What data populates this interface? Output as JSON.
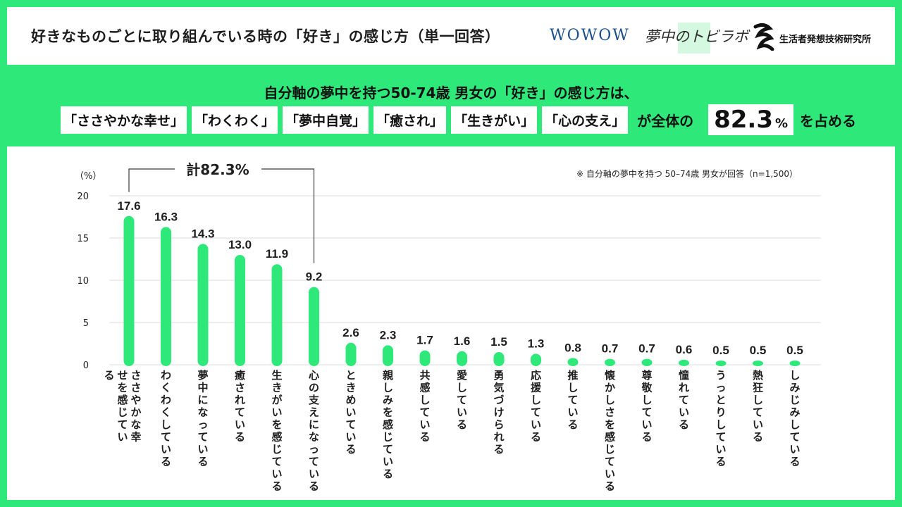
{
  "header": {
    "title": "好きなものごとに取り組んでいる時の「好き」の感じ方（単一回答）",
    "logos": {
      "wowow": "WOWOW",
      "muchu": "夢中のトビラボ",
      "seikatsu": "生活者発想技術研究所"
    }
  },
  "headline": {
    "line1": "自分軸の夢中を持つ50-74歳 男女の「好き」の感じ方は、",
    "tags": [
      "「ささやかな幸せ」",
      "「わくわく」",
      "「夢中自覚」",
      "「癒され」",
      "「生きがい」",
      "「心の支え」"
    ],
    "middle": "が全体の",
    "value": "82.3",
    "unit": "%",
    "tail": "を占める"
  },
  "colors": {
    "accent": "#2EE87A",
    "bar": "#2EE87A",
    "text": "#1e1e1e",
    "grid": "#dcdcdc",
    "bracket": "#3a3a3a"
  },
  "note": "※ 自分軸の夢中を持つ 50–74歳 男女が回答（n=1,500）",
  "chart_data": {
    "type": "bar",
    "ylabel": "（%）",
    "ylim": [
      0,
      20
    ],
    "yticks": [
      0,
      5,
      10,
      15,
      20
    ],
    "grid": true,
    "categories": [
      "ささやかな幸せを感じている",
      "わくわくしている",
      "夢中になっている",
      "癒されている",
      "生きがいを感じている",
      "心の支えになっている",
      "ときめいている",
      "親しみを感じている",
      "共感している",
      "愛している",
      "勇気づけられる",
      "応援している",
      "推している",
      "懐かしさを感じている",
      "尊敬している",
      "憧れている",
      "うっとりしている",
      "熱狂している",
      "しみじみしている"
    ],
    "values": [
      17.6,
      16.3,
      14.3,
      13.0,
      11.9,
      9.2,
      2.6,
      2.3,
      1.7,
      1.6,
      1.5,
      1.3,
      0.8,
      0.7,
      0.7,
      0.6,
      0.5,
      0.5,
      0.5
    ],
    "value_labels": [
      "17.6",
      "16.3",
      "14.3",
      "13.0",
      "11.9",
      "9.2",
      "2.6",
      "2.3",
      "1.7",
      "1.6",
      "1.5",
      "1.3",
      "0.8",
      "0.7",
      "0.7",
      "0.6",
      "0.5",
      "0.5",
      "0.5"
    ],
    "annotation": {
      "text": "計82.3%",
      "from_index": 0,
      "to_index": 5
    }
  }
}
